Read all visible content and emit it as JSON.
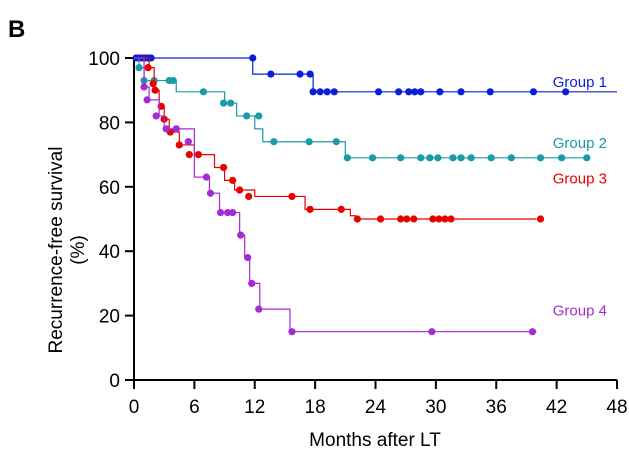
{
  "panel_label": "B",
  "chart_data": {
    "type": "line",
    "subtype": "kaplan-meier-step",
    "xlabel": "Months after LT",
    "ylabel": "Recurrence-free survival",
    "ylabel_unit": "(%)",
    "xlim": [
      0,
      48
    ],
    "ylim": [
      0,
      100
    ],
    "x_ticks": [
      "0",
      "6",
      "12",
      "18",
      "24",
      "30",
      "36",
      "42",
      "48"
    ],
    "y_ticks": [
      "0",
      "20",
      "40",
      "60",
      "80",
      "100"
    ],
    "grid": false,
    "legend": "none",
    "series": [
      {
        "name": "Group 1",
        "color": "#0A1FD4",
        "steps": [
          [
            0,
            100
          ],
          [
            11.8,
            95
          ],
          [
            17.8,
            89.5
          ],
          [
            48,
            89.5
          ]
        ],
        "markers": [
          [
            0.2,
            100
          ],
          [
            0.5,
            100
          ],
          [
            0.8,
            100
          ],
          [
            1.1,
            100
          ],
          [
            1.4,
            100
          ],
          [
            1.7,
            100
          ],
          [
            11.8,
            100
          ],
          [
            13.6,
            95
          ],
          [
            16.5,
            95
          ],
          [
            17.5,
            95
          ],
          [
            17.8,
            89.5
          ],
          [
            18.5,
            89.5
          ],
          [
            19.2,
            89.5
          ],
          [
            19.9,
            89.5
          ],
          [
            24.3,
            89.5
          ],
          [
            26.3,
            89.5
          ],
          [
            27.3,
            89.5
          ],
          [
            27.9,
            89.5
          ],
          [
            28.5,
            89.5
          ],
          [
            30.4,
            89.5
          ],
          [
            32.5,
            89.5
          ],
          [
            35.4,
            89.5
          ],
          [
            39.7,
            89.5
          ],
          [
            42.9,
            89.5
          ]
        ],
        "label_at": [
          47,
          91
        ]
      },
      {
        "name": "Group 2",
        "color": "#1A9BA8",
        "steps": [
          [
            0,
            100
          ],
          [
            0.5,
            97
          ],
          [
            1,
            93
          ],
          [
            3,
            93
          ],
          [
            3.5,
            93
          ],
          [
            4.2,
            89.5
          ],
          [
            6,
            89.5
          ],
          [
            9,
            86
          ],
          [
            10.2,
            82
          ],
          [
            12,
            78
          ],
          [
            12.8,
            74
          ],
          [
            19,
            74
          ],
          [
            21,
            69
          ],
          [
            45,
            69
          ]
        ],
        "markers": [
          [
            0.5,
            97
          ],
          [
            1,
            93
          ],
          [
            2,
            93
          ],
          [
            3.5,
            93
          ],
          [
            3.9,
            93
          ],
          [
            6.9,
            89.5
          ],
          [
            8.9,
            86
          ],
          [
            9.6,
            86
          ],
          [
            11.2,
            82
          ],
          [
            12.4,
            82
          ],
          [
            13.9,
            74
          ],
          [
            17.4,
            74
          ],
          [
            20.1,
            74
          ],
          [
            21.2,
            69
          ],
          [
            23.7,
            69
          ],
          [
            26.5,
            69
          ],
          [
            28.5,
            69
          ],
          [
            29.4,
            69
          ],
          [
            30.2,
            69
          ],
          [
            31.7,
            69
          ],
          [
            32.5,
            69
          ],
          [
            33.5,
            69
          ],
          [
            35.5,
            69
          ],
          [
            37.5,
            69
          ],
          [
            40.4,
            69
          ],
          [
            42.5,
            69
          ],
          [
            45,
            69
          ]
        ],
        "label_at": [
          47,
          72
        ]
      },
      {
        "name": "Group 3",
        "color": "#E60000",
        "steps": [
          [
            0,
            100
          ],
          [
            1.5,
            97
          ],
          [
            2,
            90
          ],
          [
            2.5,
            85
          ],
          [
            3,
            81
          ],
          [
            3.5,
            77
          ],
          [
            4.5,
            73
          ],
          [
            6,
            70
          ],
          [
            8,
            66
          ],
          [
            9,
            62
          ],
          [
            10,
            59
          ],
          [
            12,
            57
          ],
          [
            16,
            57
          ],
          [
            17,
            53
          ],
          [
            20,
            53
          ],
          [
            21.5,
            51
          ],
          [
            22,
            50
          ],
          [
            40,
            50
          ]
        ],
        "markers": [
          [
            1.4,
            97
          ],
          [
            1.9,
            92
          ],
          [
            2.1,
            90
          ],
          [
            2.7,
            85
          ],
          [
            3,
            81
          ],
          [
            3.6,
            77
          ],
          [
            4.5,
            73
          ],
          [
            5.5,
            70
          ],
          [
            6.4,
            70
          ],
          [
            8.9,
            66
          ],
          [
            9.8,
            62
          ],
          [
            10.5,
            59
          ],
          [
            11.4,
            57
          ],
          [
            15.7,
            57
          ],
          [
            17.5,
            53
          ],
          [
            20.6,
            53
          ],
          [
            22.2,
            50
          ],
          [
            24.5,
            50
          ],
          [
            26.5,
            50
          ],
          [
            27.1,
            50
          ],
          [
            27.8,
            50
          ],
          [
            29.7,
            50
          ],
          [
            30.3,
            50
          ],
          [
            30.9,
            50
          ],
          [
            31.5,
            50
          ],
          [
            40.4,
            50
          ]
        ],
        "label_at": [
          47,
          61
        ]
      },
      {
        "name": "Group 4",
        "color": "#A52CD4",
        "steps": [
          [
            0,
            100
          ],
          [
            1,
            91
          ],
          [
            1.5,
            87
          ],
          [
            2.5,
            82
          ],
          [
            3,
            78
          ],
          [
            6,
            63
          ],
          [
            7.5,
            58
          ],
          [
            8.5,
            52
          ],
          [
            10.5,
            45
          ],
          [
            11,
            38
          ],
          [
            11.5,
            30
          ],
          [
            12.5,
            22
          ],
          [
            15.5,
            15
          ],
          [
            40,
            15
          ]
        ],
        "markers": [
          [
            1,
            91
          ],
          [
            1.3,
            87
          ],
          [
            2.2,
            82
          ],
          [
            3.2,
            78
          ],
          [
            4.2,
            78
          ],
          [
            5.4,
            74
          ],
          [
            7.2,
            63
          ],
          [
            7.6,
            58
          ],
          [
            8.6,
            52
          ],
          [
            9.3,
            52
          ],
          [
            9.8,
            52
          ],
          [
            10.6,
            45
          ],
          [
            11.3,
            38
          ],
          [
            11.7,
            30
          ],
          [
            12.4,
            22
          ],
          [
            15.7,
            15
          ],
          [
            29.6,
            15
          ],
          [
            39.6,
            15
          ]
        ],
        "label_at": [
          47,
          20
        ]
      }
    ]
  }
}
